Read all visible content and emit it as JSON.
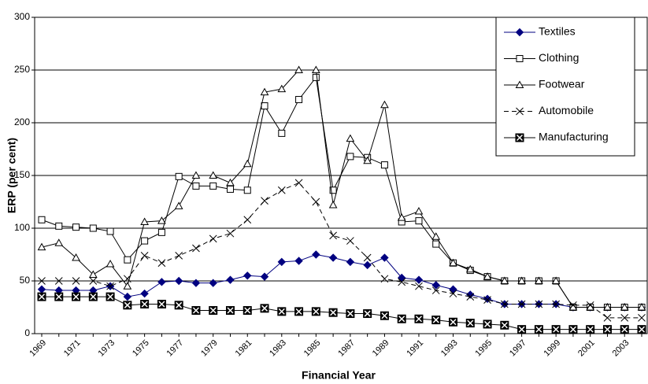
{
  "chart_data": {
    "type": "line",
    "x_label": "Financial Year",
    "y_label": "ERP (per cent)",
    "categories": [
      "1969",
      null,
      "1971",
      null,
      "1973",
      null,
      "1975",
      null,
      "1977",
      null,
      "1979",
      null,
      "1981",
      null,
      "1983",
      null,
      "1985",
      null,
      "1987",
      null,
      "1989",
      null,
      "1991",
      null,
      "1993",
      null,
      "1995",
      null,
      "1997",
      null,
      "1999",
      null,
      "2001",
      null,
      "2003",
      null
    ],
    "series": [
      {
        "name": "Textiles",
        "color": "#000080",
        "marker": "diamond",
        "dashed": false,
        "values": [
          42,
          41,
          41,
          41,
          45,
          35,
          38,
          49,
          50,
          48,
          48,
          51,
          55,
          54,
          68,
          69,
          75,
          72,
          68,
          65,
          72,
          53,
          51,
          46,
          42,
          37,
          33,
          28,
          28,
          28,
          28,
          25,
          25,
          25,
          25,
          25
        ]
      },
      {
        "name": "Clothing",
        "color": "#000000",
        "marker": "square",
        "dashed": false,
        "values": [
          108,
          102,
          101,
          100,
          97,
          70,
          88,
          96,
          149,
          140,
          140,
          137,
          136,
          216,
          190,
          222,
          243,
          136,
          168,
          167,
          160,
          106,
          107,
          85,
          67,
          60,
          54,
          50,
          50,
          50,
          50,
          25,
          25,
          25,
          25,
          25
        ]
      },
      {
        "name": "Footwear",
        "color": "#000000",
        "marker": "triangle",
        "dashed": false,
        "values": [
          82,
          86,
          72,
          56,
          66,
          45,
          106,
          107,
          121,
          150,
          150,
          143,
          161,
          229,
          232,
          250,
          250,
          122,
          185,
          164,
          217,
          110,
          116,
          92,
          67,
          61,
          54,
          50,
          50,
          50,
          50,
          25,
          25,
          25,
          25,
          25
        ]
      },
      {
        "name": "Automobile",
        "color": "#000000",
        "marker": "cross",
        "dashed": true,
        "values": [
          50,
          50,
          50,
          50,
          45,
          52,
          74,
          67,
          74,
          81,
          90,
          95,
          108,
          126,
          136,
          143,
          125,
          93,
          88,
          72,
          52,
          49,
          45,
          41,
          38,
          35,
          32,
          28,
          28,
          28,
          28,
          27,
          27,
          15,
          15,
          15
        ]
      },
      {
        "name": "Manufacturing",
        "color": "#000000",
        "marker": "boxcross",
        "dashed": false,
        "values": [
          35,
          35,
          35,
          35,
          35,
          27,
          28,
          28,
          27,
          22,
          22,
          22,
          22,
          24,
          21,
          21,
          21,
          20,
          19,
          19,
          17,
          14,
          14,
          13,
          11,
          10,
          9,
          8,
          4,
          4,
          4,
          4,
          4,
          4,
          4,
          4
        ]
      }
    ],
    "ylim": [
      0,
      300
    ],
    "yticks": [
      0,
      50,
      100,
      150,
      200,
      250,
      300
    ],
    "grid": true,
    "legend": "top-right"
  }
}
